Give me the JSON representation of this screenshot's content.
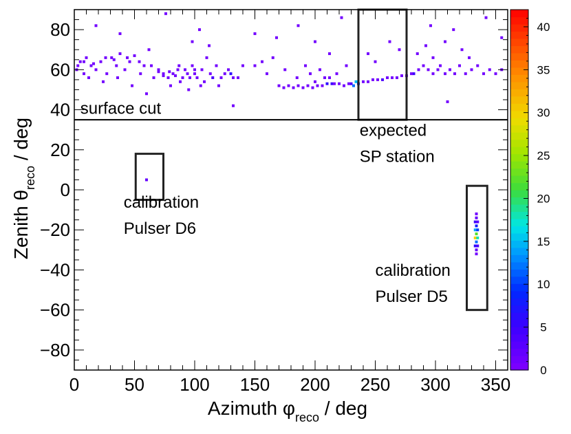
{
  "chart_data": {
    "type": "heatmap",
    "xlabel": "Azimuth φ",
    "xlabel_sub": "reco",
    "xlabel_suffix": " / deg",
    "ylabel": "Zenith θ",
    "ylabel_sub": "reco",
    "ylabel_suffix": " / deg",
    "xlim": [
      0,
      360
    ],
    "ylim": [
      -90,
      90
    ],
    "zlim": [
      0,
      42
    ],
    "x_ticks": [
      0,
      50,
      100,
      150,
      200,
      250,
      300,
      350
    ],
    "y_ticks": [
      -80,
      -60,
      -40,
      -20,
      0,
      20,
      40,
      60,
      80
    ],
    "z_ticks": [
      0,
      5,
      10,
      15,
      20,
      25,
      30,
      35,
      40
    ],
    "x_tick_labels": [
      "0",
      "50",
      "100",
      "150",
      "200",
      "250",
      "300",
      "350"
    ],
    "y_tick_labels": [
      "−80",
      "−60",
      "−40",
      "−20",
      "0",
      "20",
      "40",
      "60",
      "80"
    ],
    "z_tick_labels": [
      "0",
      "5",
      "10",
      "15",
      "20",
      "25",
      "30",
      "35",
      "40"
    ],
    "grid": false,
    "colorbar": "right",
    "surface_cut_zenith": 35,
    "annotations": [
      {
        "id": "surface-cut",
        "lines": [
          "surface cut"
        ],
        "x": 5,
        "y": 38
      },
      {
        "id": "expected-sp-station",
        "lines": [
          "expected",
          "SP station"
        ],
        "x": 237,
        "y": 27
      },
      {
        "id": "pulser-d6",
        "lines": [
          "calibration",
          "Pulser D6"
        ],
        "x": 41,
        "y": -9
      },
      {
        "id": "pulser-d5",
        "lines": [
          "calibration",
          "Pulser D5"
        ],
        "x": 250,
        "y": -43
      }
    ],
    "boxes": [
      {
        "id": "sp-station-box",
        "x0": 236,
        "x1": 276,
        "y0": 35,
        "y1": 90
      },
      {
        "id": "pulser-d6-box",
        "x0": 51,
        "x1": 74,
        "y0": -5,
        "y1": 18
      },
      {
        "id": "pulser-d5-box",
        "x0": 326,
        "x1": 343,
        "y0": -60,
        "y1": 2
      }
    ],
    "bins": [
      [
        60,
        5,
        2
      ],
      [
        334,
        -12,
        1
      ],
      [
        334,
        -14,
        2
      ],
      [
        333,
        -16,
        5
      ],
      [
        335,
        -16,
        3
      ],
      [
        334,
        -18,
        8
      ],
      [
        333,
        -20,
        14
      ],
      [
        335,
        -20,
        10
      ],
      [
        334,
        -22,
        22
      ],
      [
        333,
        -24,
        30
      ],
      [
        335,
        -24,
        18
      ],
      [
        334,
        -26,
        12
      ],
      [
        333,
        -28,
        6
      ],
      [
        335,
        -28,
        4
      ],
      [
        334,
        -30,
        2
      ],
      [
        334,
        -32,
        1
      ],
      [
        232,
        52,
        12
      ],
      [
        234,
        54,
        15
      ],
      [
        236,
        53,
        9
      ],
      [
        210,
        53,
        6
      ],
      [
        214,
        53,
        5
      ],
      [
        230,
        53,
        4
      ],
      [
        256,
        55,
        4
      ],
      [
        282,
        58,
        5
      ],
      [
        130,
        58,
        6
      ],
      [
        115,
        56,
        4
      ],
      [
        2,
        60,
        1
      ],
      [
        5,
        64,
        1
      ],
      [
        8,
        58,
        1
      ],
      [
        10,
        66,
        1
      ],
      [
        14,
        62,
        1
      ],
      [
        18,
        60,
        1
      ],
      [
        22,
        64,
        1
      ],
      [
        27,
        58,
        1
      ],
      [
        31,
        66,
        1
      ],
      [
        35,
        62,
        1
      ],
      [
        38,
        68,
        1
      ],
      [
        42,
        60,
        1
      ],
      [
        46,
        64,
        1
      ],
      [
        50,
        67,
        1
      ],
      [
        55,
        58,
        1
      ],
      [
        58,
        62,
        1
      ],
      [
        62,
        70,
        1
      ],
      [
        66,
        56,
        1
      ],
      [
        70,
        60,
        1
      ],
      [
        74,
        58,
        1
      ],
      [
        78,
        56,
        1
      ],
      [
        82,
        58,
        1
      ],
      [
        86,
        60,
        1
      ],
      [
        90,
        56,
        1
      ],
      [
        94,
        58,
        1
      ],
      [
        98,
        62,
        1
      ],
      [
        102,
        56,
        1
      ],
      [
        106,
        60,
        1
      ],
      [
        110,
        66,
        1
      ],
      [
        113,
        58,
        1
      ],
      [
        118,
        62,
        1
      ],
      [
        122,
        56,
        1
      ],
      [
        125,
        58,
        1
      ],
      [
        128,
        60,
        1
      ],
      [
        132,
        56,
        1
      ],
      [
        136,
        56,
        1
      ],
      [
        140,
        62,
        1
      ],
      [
        18,
        82,
        1
      ],
      [
        38,
        78,
        1
      ],
      [
        76,
        88,
        1
      ],
      [
        98,
        74,
        1
      ],
      [
        104,
        80,
        1
      ],
      [
        112,
        72,
        1
      ],
      [
        150,
        78,
        1
      ],
      [
        168,
        76,
        1
      ],
      [
        186,
        82,
        1
      ],
      [
        200,
        74,
        1
      ],
      [
        222,
        86,
        1
      ],
      [
        296,
        82,
        1
      ],
      [
        315,
        80,
        1
      ],
      [
        342,
        86,
        1
      ],
      [
        355,
        76,
        1
      ],
      [
        132,
        42,
        1
      ],
      [
        310,
        44,
        1
      ],
      [
        60,
        48,
        1
      ],
      [
        95,
        50,
        1
      ],
      [
        105,
        52,
        1
      ],
      [
        170,
        52,
        1
      ],
      [
        174,
        51,
        1
      ],
      [
        178,
        52,
        1
      ],
      [
        182,
        51,
        1
      ],
      [
        186,
        52,
        1
      ],
      [
        190,
        51,
        1
      ],
      [
        194,
        52,
        1
      ],
      [
        198,
        51,
        1
      ],
      [
        202,
        52,
        1
      ],
      [
        206,
        52,
        1
      ],
      [
        216,
        53,
        1
      ],
      [
        220,
        53,
        1
      ],
      [
        224,
        52,
        1
      ],
      [
        228,
        53,
        1
      ],
      [
        240,
        54,
        1
      ],
      [
        244,
        54,
        1
      ],
      [
        248,
        55,
        1
      ],
      [
        252,
        55,
        1
      ],
      [
        260,
        56,
        1
      ],
      [
        264,
        56,
        1
      ],
      [
        268,
        56,
        1
      ],
      [
        272,
        57,
        1
      ],
      [
        276,
        57,
        1
      ],
      [
        280,
        58,
        1
      ],
      [
        286,
        60,
        1
      ],
      [
        290,
        62,
        1
      ],
      [
        294,
        60,
        1
      ],
      [
        298,
        58,
        1
      ],
      [
        302,
        60,
        1
      ],
      [
        308,
        58,
        1
      ],
      [
        312,
        60,
        1
      ],
      [
        316,
        58,
        1
      ],
      [
        320,
        62,
        1
      ],
      [
        325,
        58,
        1
      ],
      [
        330,
        60,
        1
      ],
      [
        335,
        62,
        1
      ],
      [
        340,
        58,
        1
      ],
      [
        345,
        60,
        1
      ],
      [
        350,
        58,
        1
      ],
      [
        355,
        60,
        1
      ],
      [
        150,
        62,
        1
      ],
      [
        156,
        64,
        1
      ],
      [
        160,
        58,
        1
      ],
      [
        165,
        66,
        1
      ],
      [
        175,
        60,
        1
      ],
      [
        185,
        56,
        1
      ],
      [
        192,
        62,
        1
      ],
      [
        196,
        58,
        1
      ],
      [
        204,
        60,
        1
      ],
      [
        212,
        68,
        1
      ],
      [
        226,
        62,
        1
      ],
      [
        244,
        68,
        1
      ],
      [
        250,
        64,
        1
      ],
      [
        262,
        74,
        1
      ],
      [
        270,
        70,
        1
      ],
      [
        285,
        68,
        1
      ],
      [
        292,
        72,
        1
      ],
      [
        298,
        66,
        1
      ],
      [
        304,
        62,
        1
      ],
      [
        308,
        74,
        1
      ],
      [
        322,
        70,
        1
      ],
      [
        328,
        66,
        1
      ],
      [
        212,
        56,
        1
      ],
      [
        218,
        58,
        1
      ],
      [
        208,
        56,
        1
      ],
      [
        200,
        54,
        1
      ],
      [
        36,
        56,
        1
      ],
      [
        24,
        54,
        1
      ],
      [
        12,
        56,
        1
      ],
      [
        48,
        52,
        1
      ],
      [
        80,
        52,
        1
      ],
      [
        88,
        54,
        1
      ],
      [
        100,
        58,
        1
      ],
      [
        108,
        54,
        1
      ],
      [
        120,
        52,
        1
      ],
      [
        87,
        62,
        1
      ],
      [
        92,
        60,
        1
      ],
      [
        96,
        56,
        1
      ],
      [
        100,
        60,
        1
      ],
      [
        84,
        57,
        1
      ],
      [
        79,
        59,
        1
      ],
      [
        74,
        57,
        1
      ],
      [
        70,
        59,
        1
      ],
      [
        3,
        62,
        1
      ],
      [
        8,
        64,
        1
      ],
      [
        16,
        63,
        1
      ],
      [
        26,
        66,
        1
      ],
      [
        33,
        65,
        1
      ],
      [
        44,
        66,
        1
      ],
      [
        54,
        64,
        1
      ],
      [
        64,
        62,
        1
      ]
    ]
  }
}
